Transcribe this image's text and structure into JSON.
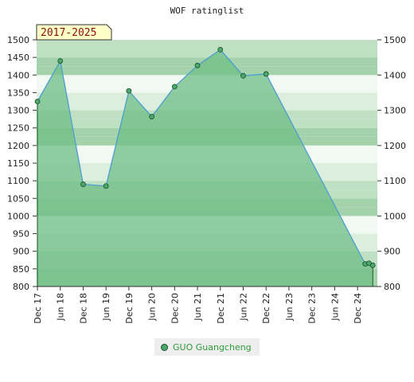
{
  "chart_data": {
    "type": "area",
    "title": "WOF ratinglist",
    "period_badge": "2017-2025",
    "ylim": [
      800,
      1500
    ],
    "yticks": [
      800,
      850,
      900,
      950,
      1000,
      1050,
      1100,
      1150,
      1200,
      1250,
      1300,
      1350,
      1400,
      1450,
      1500
    ],
    "yticks_right": [
      800,
      900,
      1000,
      1100,
      1200,
      1300,
      1400,
      1500
    ],
    "xticks": [
      "Dec 17",
      "Jun 18",
      "Dec 18",
      "Jun 19",
      "Dec 19",
      "Jun 20",
      "Dec 20",
      "Jun 21",
      "Dec 21",
      "Jun 22",
      "Dec 22",
      "Jun 23",
      "Dec 23",
      "Jun 24",
      "Dec 24"
    ],
    "series": [
      {
        "name": "GUO Guangcheng",
        "x": [
          "2017-12",
          "2018-06",
          "2018-12",
          "2019-06",
          "2019-12",
          "2020-06",
          "2020-12",
          "2021-06",
          "2021-12",
          "2022-06",
          "2022-12",
          "2025-02",
          "2025-03",
          "2025-04"
        ],
        "values": [
          1325,
          1440,
          1090,
          1085,
          1355,
          1282,
          1367,
          1427,
          1472,
          1398,
          1403,
          864,
          866,
          860
        ]
      }
    ],
    "legend_position": "bottom-center",
    "grid": true
  },
  "colors": {
    "band_light": "#f2f8f2",
    "band_pale": "#dceedd",
    "band_mid": "#bfe0c3",
    "band_strong": "#a4d3ab",
    "area_fill": "#6fbe85",
    "line": "#4a9fd0",
    "marker": "#49a86a",
    "badge_bg": "#ffffc8"
  }
}
